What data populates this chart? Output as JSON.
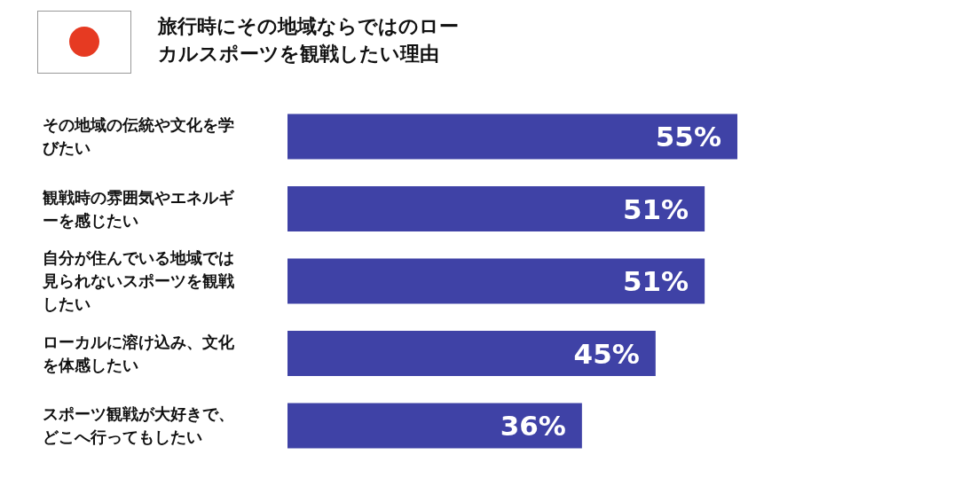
{
  "chart_data": {
    "type": "bar",
    "orientation": "horizontal",
    "title": "旅行時にその地域ならではのローカルスポーツを観戦したい理由",
    "categories": [
      "その地域の伝統や文化を学びたい",
      "観戦時の雰囲気やエネルギーを感じたい",
      "自分が住んでいる地域では見られないスポーツを観戦したい",
      "ローカルに溶け込み、文化を体感したい",
      "スポーツ観戦が大好きで、どこへ行ってもしたい"
    ],
    "values": [
      55,
      51,
      51,
      45,
      36
    ],
    "value_labels": [
      "55%",
      "51%",
      "51%",
      "45%",
      "36%"
    ],
    "color": "#3f42a6",
    "xlim": [
      0,
      55
    ]
  }
}
